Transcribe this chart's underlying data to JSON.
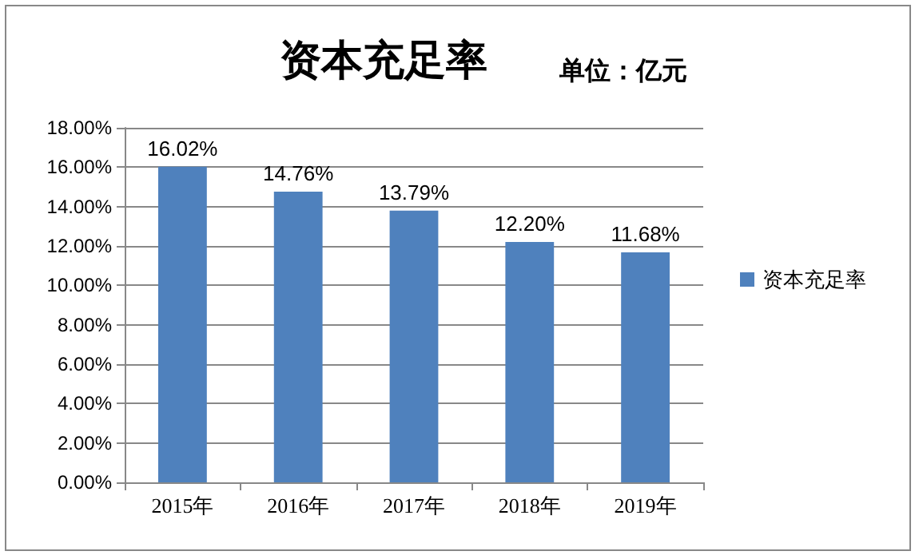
{
  "chart_data": {
    "type": "bar",
    "title": "资本充足率",
    "subtitle": "单位：亿元",
    "categories": [
      "2015年",
      "2016年",
      "2017年",
      "2018年",
      "2019年"
    ],
    "series": [
      {
        "name": "资本充足率",
        "color": "#4f81bd",
        "values": [
          16.02,
          14.76,
          13.79,
          12.2,
          11.68
        ],
        "value_labels": [
          "16.02%",
          "14.76%",
          "13.79%",
          "12.20%",
          "11.68%"
        ]
      }
    ],
    "ylim": [
      0,
      18
    ],
    "yticks": [
      {
        "value": 0,
        "label": "0.00%"
      },
      {
        "value": 2,
        "label": "2.00%"
      },
      {
        "value": 4,
        "label": "4.00%"
      },
      {
        "value": 6,
        "label": "6.00%"
      },
      {
        "value": 8,
        "label": "8.00%"
      },
      {
        "value": 10,
        "label": "10.00%"
      },
      {
        "value": 12,
        "label": "12.00%"
      },
      {
        "value": 14,
        "label": "14.00%"
      },
      {
        "value": 16,
        "label": "16.00%"
      },
      {
        "value": 18,
        "label": "18.00%"
      }
    ],
    "grid": "y",
    "legend": "right"
  }
}
